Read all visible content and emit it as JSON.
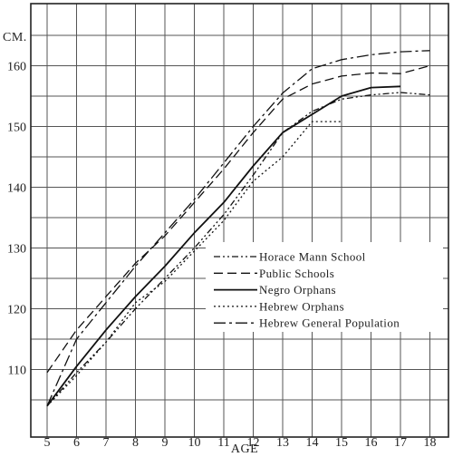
{
  "chart_data": {
    "type": "line",
    "title": "",
    "xlabel": "AGE",
    "ylabel": "CM.",
    "xlim": [
      4.5,
      18.3
    ],
    "ylim": [
      103,
      167
    ],
    "x_ticks": [
      5,
      6,
      7,
      8,
      9,
      10,
      11,
      12,
      13,
      14,
      15,
      16,
      17,
      18
    ],
    "y_ticks": [
      110,
      120,
      130,
      140,
      150,
      160
    ],
    "grid": true,
    "legend_position": "center-right",
    "series": [
      {
        "name": "Horace Mann School",
        "dash": "dash-dot-dot",
        "x": [
          5,
          6,
          7,
          8,
          9,
          10,
          11,
          12,
          13,
          14,
          15,
          16,
          17,
          18
        ],
        "y": [
          104.0,
          109.5,
          114.5,
          120.0,
          125.0,
          130.0,
          135.5,
          142.0,
          149.0,
          152.5,
          154.5,
          155.2,
          155.6,
          155.2
        ]
      },
      {
        "name": "Public Schools",
        "dash": "dashed",
        "x": [
          5,
          6,
          7,
          8,
          9,
          10,
          11,
          12,
          13,
          14,
          15,
          16,
          17,
          18
        ],
        "y": [
          109.5,
          116.5,
          122.0,
          127.5,
          132.0,
          137.5,
          143.0,
          149.0,
          154.5,
          157.0,
          158.3,
          158.8,
          158.7,
          160.0
        ]
      },
      {
        "name": "Negro Orphans",
        "dash": "solid",
        "x": [
          5,
          6,
          7,
          8,
          9,
          10,
          11,
          12,
          13,
          14,
          15,
          16,
          17
        ],
        "y": [
          104.0,
          110.5,
          116.5,
          122.0,
          127.0,
          132.5,
          137.5,
          143.5,
          149.0,
          152.0,
          155.0,
          156.4,
          156.6
        ]
      },
      {
        "name": "Hebrew Orphans",
        "dash": "dotted",
        "x": [
          5,
          6,
          7,
          8,
          9,
          10,
          11,
          12,
          13,
          14,
          15
        ],
        "y": [
          104.0,
          109.0,
          114.5,
          121.0,
          124.5,
          129.5,
          134.5,
          141.0,
          145.0,
          150.8,
          150.8
        ]
      },
      {
        "name": "Hebrew General Population",
        "dash": "long-dash-dot",
        "x": [
          5,
          6,
          7,
          8,
          9,
          10,
          11,
          12,
          13,
          14,
          15,
          16,
          17,
          18
        ],
        "y": [
          104.0,
          115.0,
          121.0,
          127.0,
          132.5,
          138.0,
          144.0,
          150.0,
          155.5,
          159.5,
          161.0,
          161.8,
          162.3,
          162.5
        ]
      }
    ]
  }
}
